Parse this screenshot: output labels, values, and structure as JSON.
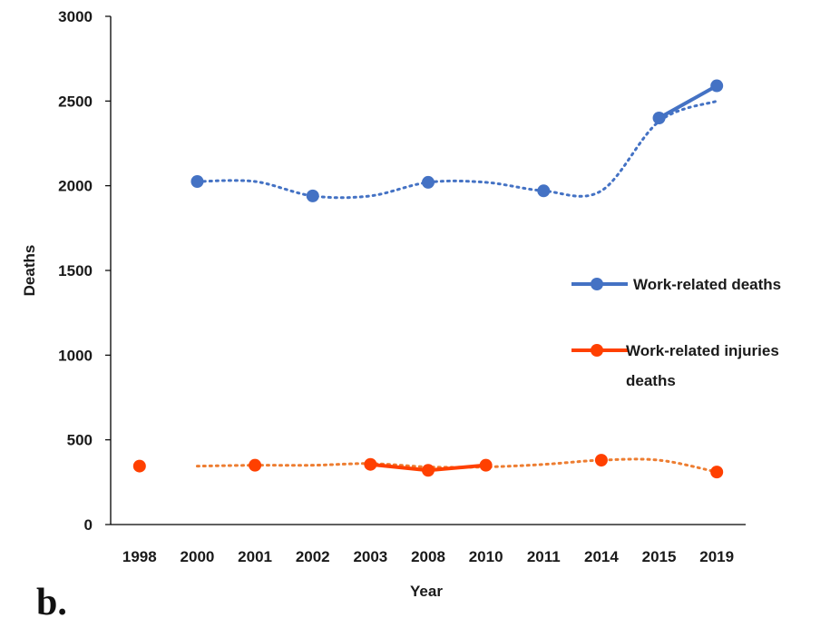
{
  "panel_label": "b.",
  "chart_data": {
    "type": "line",
    "title": "",
    "xlabel": "Year",
    "ylabel": "Deaths",
    "categories": [
      "1998",
      "2000",
      "2001",
      "2002",
      "2003",
      "2008",
      "2010",
      "2011",
      "2014",
      "2015",
      "2019"
    ],
    "ylim": [
      0,
      3000
    ],
    "yticks": [
      0,
      500,
      1000,
      1500,
      2000,
      2500,
      3000
    ],
    "grid": false,
    "legend_position": "right",
    "series": [
      {
        "name": "Work-related deaths",
        "color": "#4472C4",
        "values": [
          null,
          2025,
          null,
          1940,
          null,
          2020,
          null,
          1970,
          null,
          2400,
          2590
        ],
        "solid_segments": [
          [
            9,
            10
          ]
        ],
        "trendline": {
          "style": "dotted",
          "values": [
            null,
            2025,
            2025,
            1940,
            1940,
            2020,
            2020,
            1970,
            1970,
            2380,
            2500
          ]
        }
      },
      {
        "name": "Work-related injuries deaths",
        "color": "#FF4000",
        "values": [
          345,
          null,
          350,
          null,
          355,
          320,
          350,
          null,
          380,
          null,
          310
        ],
        "solid_segments": [
          [
            4,
            5
          ],
          [
            5,
            6
          ]
        ],
        "trendline": {
          "style": "dotted",
          "color": "#ED7D31",
          "values": [
            null,
            345,
            350,
            350,
            360,
            340,
            340,
            355,
            380,
            380,
            310
          ]
        }
      }
    ]
  }
}
